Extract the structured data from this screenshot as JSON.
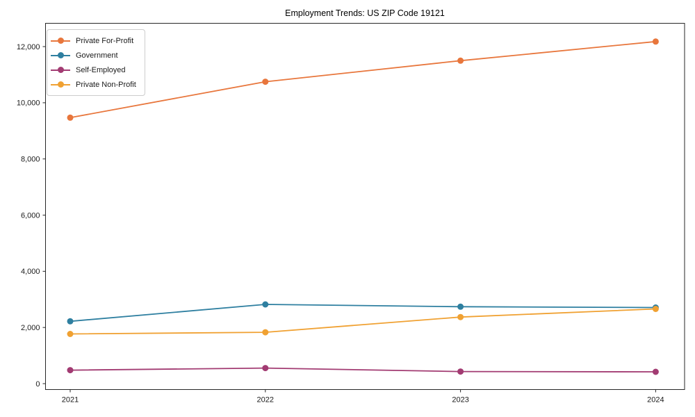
{
  "chart_data": {
    "type": "line",
    "title": "Employment Trends: US ZIP Code 19121",
    "x": [
      "2021",
      "2022",
      "2023",
      "2024"
    ],
    "series": [
      {
        "name": "Private For-Profit",
        "color": "#e8763c",
        "values": [
          9470,
          10750,
          11500,
          12180
        ]
      },
      {
        "name": "Government",
        "color": "#2e7fa0",
        "values": [
          2220,
          2820,
          2740,
          2710
        ]
      },
      {
        "name": "Self-Employed",
        "color": "#a23b72",
        "values": [
          480,
          555,
          430,
          420
        ]
      },
      {
        "name": "Private Non-Profit",
        "color": "#f0a132",
        "values": [
          1770,
          1830,
          2370,
          2660
        ]
      }
    ],
    "xlabel": "",
    "ylabel": "",
    "yticks": [
      0,
      2000,
      4000,
      6000,
      8000,
      10000,
      12000
    ],
    "ytick_labels": [
      "0",
      "2,000",
      "4,000",
      "6,000",
      "8,000",
      "10,000",
      "12,000"
    ],
    "ylim": [
      -210,
      12830
    ],
    "grid": false,
    "legend_position": "upper left",
    "marker": "circle",
    "axis_color": "#262626"
  }
}
